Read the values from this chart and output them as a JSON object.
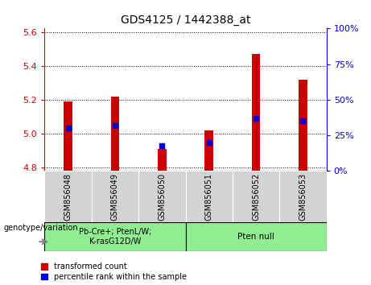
{
  "title": "GDS4125 / 1442388_at",
  "samples": [
    "GSM856048",
    "GSM856049",
    "GSM856050",
    "GSM856051",
    "GSM856052",
    "GSM856053"
  ],
  "red_values": [
    5.19,
    5.22,
    4.91,
    5.02,
    5.47,
    5.32
  ],
  "blue_percentiles": [
    30,
    32,
    18,
    20,
    37,
    35
  ],
  "ylim_left": [
    4.78,
    5.62
  ],
  "ylim_right": [
    0,
    100
  ],
  "yticks_left": [
    4.8,
    5.0,
    5.2,
    5.4,
    5.6
  ],
  "yticks_right": [
    0,
    25,
    50,
    75,
    100
  ],
  "red_color": "#cc0000",
  "blue_color": "#0000cc",
  "bar_bottom": 4.78,
  "group1_label": "Pb-Cre+; PtenL/W;\nK-rasG12D/W",
  "group2_label": "Pten null",
  "genotype_label": "genotype/variation",
  "legend_red": "transformed count",
  "legend_blue": "percentile rank within the sample",
  "group_bg_color": "#90ee90",
  "sample_bg_color": "#d3d3d3",
  "bar_width": 0.18,
  "figsize": [
    4.61,
    3.54
  ],
  "dpi": 100
}
